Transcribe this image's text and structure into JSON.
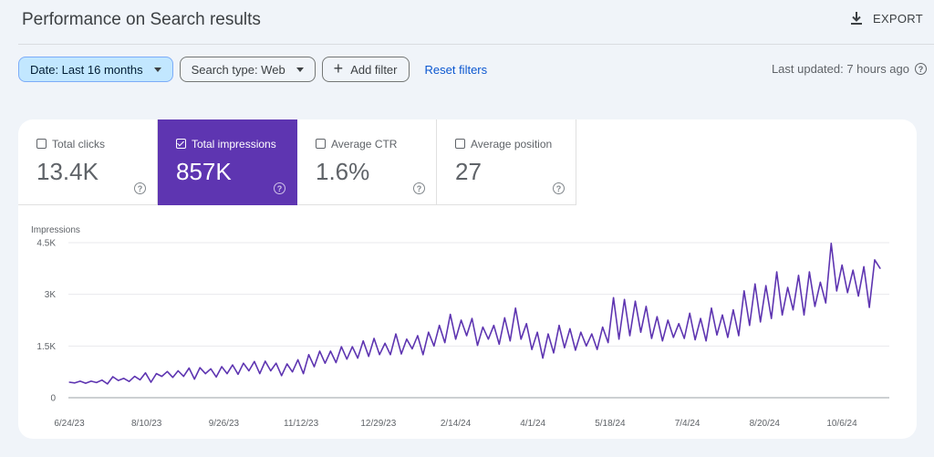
{
  "header": {
    "title": "Performance on Search results",
    "export_label": "EXPORT"
  },
  "filters": {
    "date": "Date: Last 16 months",
    "search_type": "Search type: Web",
    "add_filter": "Add filter",
    "reset": "Reset filters",
    "last_updated": "Last updated: 7 hours ago"
  },
  "metrics": [
    {
      "label": "Total clicks",
      "value": "13.4K",
      "selected": false
    },
    {
      "label": "Total impressions",
      "value": "857K",
      "selected": true
    },
    {
      "label": "Average CTR",
      "value": "1.6%",
      "selected": false
    },
    {
      "label": "Average position",
      "value": "27",
      "selected": false
    }
  ],
  "colors": {
    "accent": "#5e35b1",
    "line": "#5e35b1",
    "chip_active": "#c2e7ff",
    "link": "#0b57d0"
  },
  "icons": {
    "export": "download-icon",
    "help": "help-circle-icon",
    "add": "plus-icon",
    "dropdown": "caret-down-icon"
  },
  "chart_data": {
    "type": "line",
    "ylabel": "Impressions",
    "ylim": [
      0,
      4500
    ],
    "yticks": [
      {
        "value": 0,
        "label": "0"
      },
      {
        "value": 1500,
        "label": "1.5K"
      },
      {
        "value": 3000,
        "label": "3K"
      },
      {
        "value": 4500,
        "label": "4.5K"
      }
    ],
    "xticks": [
      "6/24/23",
      "8/10/23",
      "9/26/23",
      "11/12/23",
      "12/29/23",
      "2/14/24",
      "4/1/24",
      "5/18/24",
      "7/4/24",
      "8/20/24",
      "10/6/24"
    ],
    "xrange": [
      "6/24/23",
      "10/24/24"
    ],
    "grid": true,
    "legend": "none",
    "series": [
      {
        "values": [
          450,
          430,
          480,
          420,
          480,
          440,
          510,
          400,
          610,
          500,
          560,
          470,
          620,
          520,
          720,
          450,
          700,
          620,
          760,
          590,
          780,
          620,
          860,
          540,
          870,
          700,
          840,
          600,
          900,
          700,
          950,
          680,
          1000,
          780,
          1050,
          700,
          1060,
          780,
          1000,
          640,
          980,
          750,
          1100,
          700,
          1250,
          900,
          1350,
          1000,
          1350,
          1020,
          1480,
          1120,
          1480,
          1150,
          1650,
          1200,
          1720,
          1250,
          1580,
          1250,
          1850,
          1270,
          1700,
          1420,
          1800,
          1250,
          1900,
          1500,
          2100,
          1600,
          2420,
          1700,
          2250,
          1800,
          2300,
          1520,
          2050,
          1700,
          2100,
          1550,
          2320,
          1650,
          2600,
          1700,
          2150,
          1400,
          1900,
          1150,
          1850,
          1300,
          2100,
          1450,
          2000,
          1380,
          1900,
          1500,
          1850,
          1400,
          2050,
          1600,
          2900,
          1700,
          2850,
          1800,
          2800,
          1900,
          2650,
          1720,
          2350,
          1650,
          2250,
          1750,
          2150,
          1720,
          2450,
          1680,
          2300,
          1650,
          2600,
          1820,
          2400,
          1750,
          2550,
          1800,
          3100,
          2100,
          3300,
          2200,
          3250,
          2300,
          3650,
          2400,
          3200,
          2550,
          3550,
          2400,
          3650,
          2650,
          3350,
          2750,
          4480,
          3100,
          3850,
          3050,
          3700,
          2950,
          3800,
          2620,
          4000,
          3750
        ]
      }
    ]
  }
}
